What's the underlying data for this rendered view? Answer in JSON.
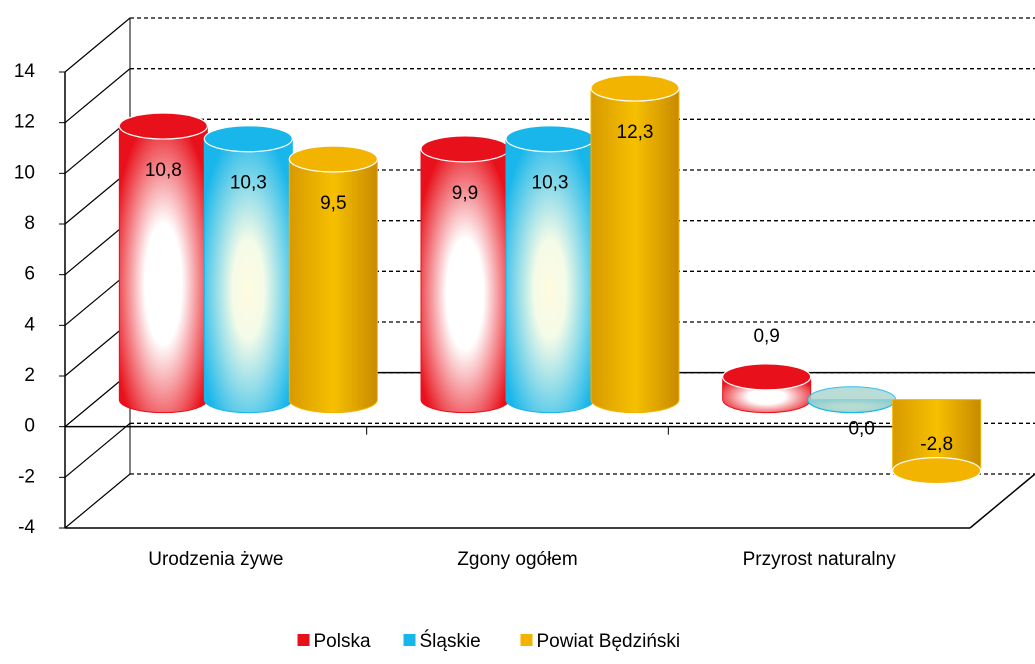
{
  "chart_data": {
    "type": "bar3d",
    "categories": [
      "Urodzenia żywe",
      "Zgony ogółem",
      "Przyrost naturalny"
    ],
    "series": [
      {
        "name": "Polska",
        "color": "#e8101a",
        "values": [
          10.8,
          9.9,
          0.9
        ],
        "value_labels": [
          "10,8",
          "9,9",
          "0,9"
        ]
      },
      {
        "name": "Śląskie",
        "color": "#18b6ea",
        "values": [
          10.3,
          10.3,
          0.0
        ],
        "value_labels": [
          "10,3",
          "10,3",
          "0,0"
        ]
      },
      {
        "name": "Powiat Będziński",
        "color": "#f2b400",
        "values": [
          9.5,
          12.3,
          -2.8
        ],
        "value_labels": [
          "9,5",
          "12,3",
          "-2,8"
        ]
      }
    ],
    "ylim": [
      -4,
      14
    ],
    "yticks": [
      -4,
      -2,
      0,
      2,
      4,
      6,
      8,
      10,
      12,
      14
    ],
    "grid": true,
    "legend": "bottom"
  }
}
